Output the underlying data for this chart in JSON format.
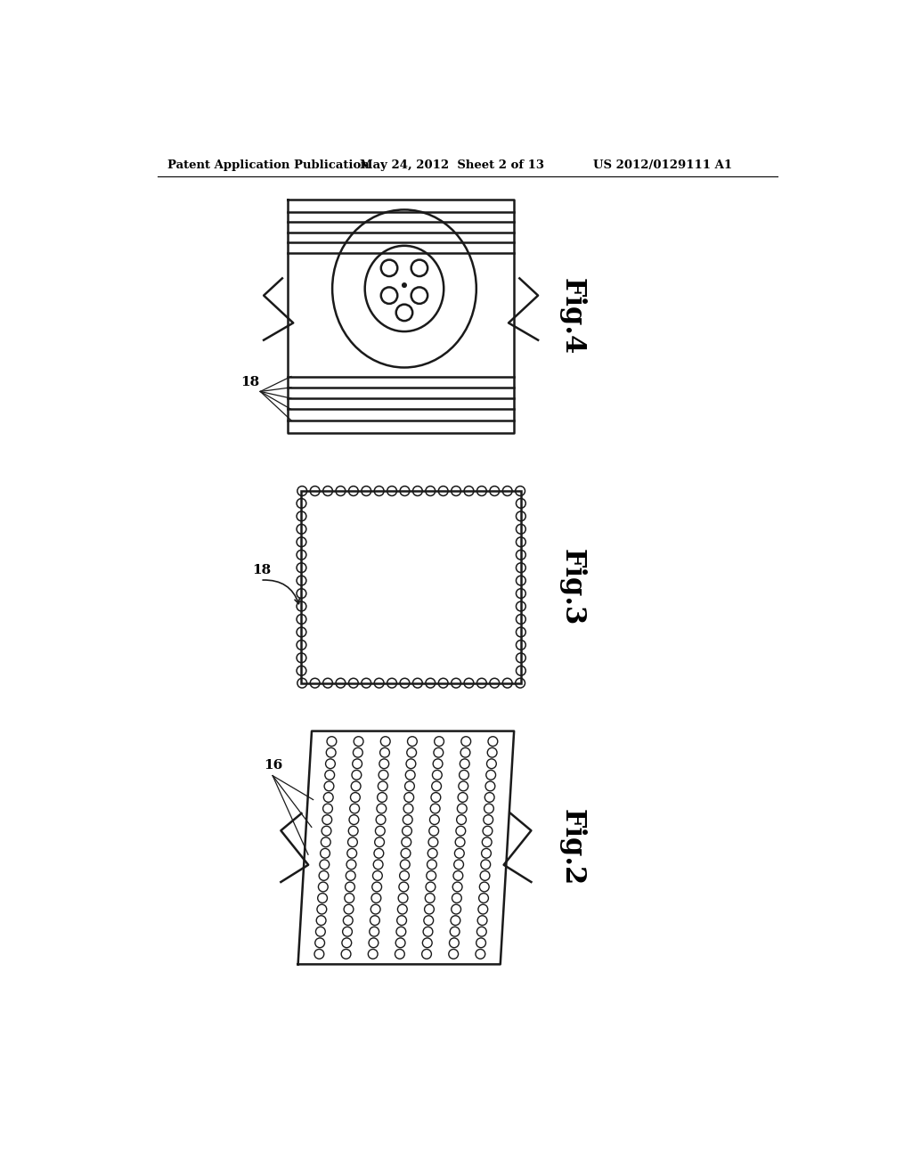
{
  "header_left": "Patent Application Publication",
  "header_mid": "May 24, 2012  Sheet 2 of 13",
  "header_right": "US 2012/0129111 A1",
  "fig4_label": "Fig.4",
  "fig3_label": "Fig.3",
  "fig2_label": "Fig.2",
  "label_18_fig4": "18",
  "label_18_fig3": "18",
  "label_16_fig2": "16",
  "bg_color": "#ffffff",
  "line_color": "#1a1a1a",
  "line_width": 1.8
}
